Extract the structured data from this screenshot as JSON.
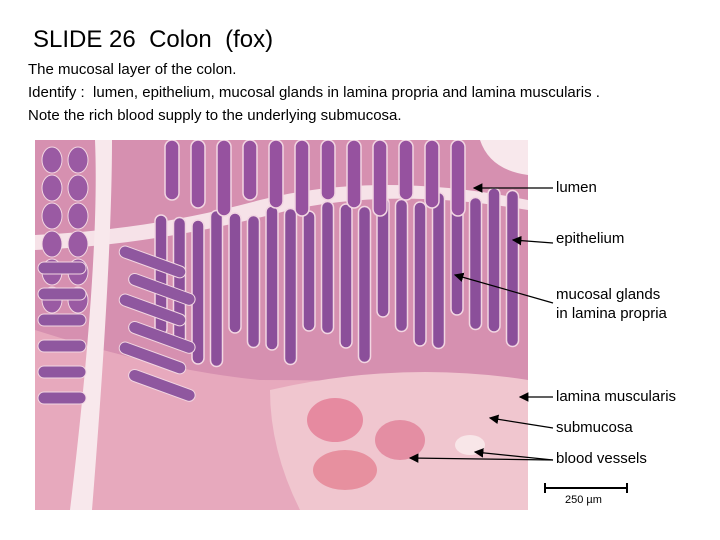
{
  "header": {
    "title": "SLIDE 26  Colon  (fox)"
  },
  "description": [
    "The mucosal layer of the colon.",
    "Identify :  lumen, epithelium, mucosal glands in lamina propria and lamina muscularis .",
    "Note the rich blood supply to the underlying submucosa."
  ],
  "labels": [
    {
      "lines": [
        "lumen"
      ]
    },
    {
      "lines": [
        "epithelium"
      ]
    },
    {
      "lines": [
        "mucosal glands",
        "in lamina propria"
      ]
    },
    {
      "lines": [
        "lamina muscularis"
      ]
    },
    {
      "lines": [
        "submucosa"
      ]
    },
    {
      "lines": [
        "blood vessels"
      ]
    }
  ],
  "scale_bar": "250 µm"
}
